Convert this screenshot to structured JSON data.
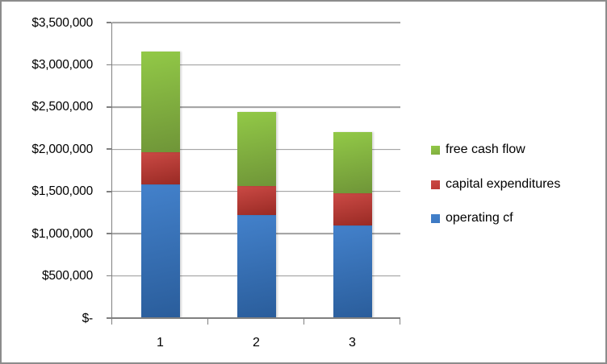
{
  "chart_data": {
    "type": "bar",
    "stacked": true,
    "title": "",
    "xlabel": "",
    "ylabel": "",
    "grid": true,
    "categories": [
      "1",
      "2",
      "3"
    ],
    "series": [
      {
        "name": "operating cf",
        "values": [
          1580000,
          1220000,
          1100000
        ],
        "color_light": "#4381CB",
        "color_dark": "#2A5D9B",
        "legend_color": "#3C78C2"
      },
      {
        "name": "capital expenditures",
        "values": [
          380000,
          345000,
          380000
        ],
        "color_light": "#CB4A45",
        "color_dark": "#992A24",
        "legend_color": "#BC3A35"
      },
      {
        "name": "free cash flow",
        "values": [
          1200000,
          875000,
          720000
        ],
        "color_light": "#92C947",
        "color_dark": "#6F9538",
        "legend_color": "#80AD3F"
      }
    ],
    "stack_totals": [
      3160000,
      2440000,
      2200000
    ],
    "y_axis": {
      "min": 0,
      "max": 3500000,
      "step": 500000,
      "tick_labels": [
        "$3,500,000",
        "$3,000,000",
        "$2,500,000",
        "$2,000,000",
        "$1,500,000",
        "$1,000,000",
        "$500,000",
        "$-"
      ]
    },
    "x_axis": {
      "tick_labels": [
        "1",
        "2",
        "3"
      ]
    },
    "legend": {
      "position": "right",
      "items": [
        "free cash flow",
        "capital expenditures",
        "operating cf"
      ]
    }
  },
  "colors": {
    "background": "#FFFFFF",
    "border": "#8C8C8C",
    "gridline": "#A6A6A6",
    "axis": "#808080",
    "text": "#000000"
  }
}
